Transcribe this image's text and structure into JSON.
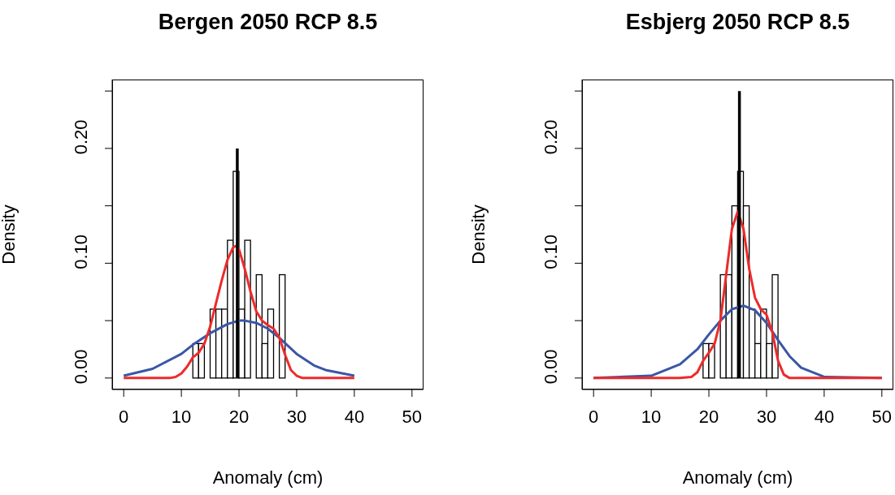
{
  "chart_data": [
    {
      "type": "histogram",
      "title": "Bergen 2050 RCP 8.5",
      "xlabel": "Anomaly (cm)",
      "ylabel": "Density",
      "bins": [
        12,
        13,
        14,
        15,
        16,
        17,
        18,
        19,
        20,
        21,
        22,
        23,
        24,
        25,
        26,
        27,
        28
      ],
      "values": [
        0.03,
        0.03,
        0,
        0.06,
        0.06,
        0.06,
        0.12,
        0.18,
        0.06,
        0.12,
        0,
        0.09,
        0.03,
        0.06,
        0,
        0.09
      ],
      "color": "#ffffff",
      "xlim": [
        -2,
        52
      ],
      "xticks": [
        0,
        10,
        20,
        30,
        40,
        50
      ],
      "ylim": [
        -0.01,
        0.26
      ],
      "yticks": [
        {
          "value": 0,
          "label": "0.00"
        },
        {
          "value": 0.05,
          "label": null
        },
        {
          "value": 0.1,
          "label": "0.10"
        },
        {
          "value": 0.15,
          "label": null
        },
        {
          "value": 0.2,
          "label": "0.20"
        },
        {
          "value": 0.25,
          "label": null
        }
      ],
      "series": [
        {
          "type": "line",
          "color": "#3a56a6",
          "x": [
            0,
            5,
            10,
            12,
            15,
            18,
            20,
            21,
            23,
            25,
            27,
            30,
            33,
            35,
            40
          ],
          "values": [
            0.002,
            0.008,
            0.021,
            0.029,
            0.039,
            0.047,
            0.05,
            0.05,
            0.048,
            0.043,
            0.035,
            0.021,
            0.011,
            0.007,
            0.002
          ]
        },
        {
          "type": "line",
          "color": "#ee2a2a",
          "x": [
            0,
            8,
            9,
            10,
            11,
            12,
            13,
            14,
            15,
            16,
            17,
            18,
            19,
            19.5,
            20,
            21,
            22,
            23,
            24,
            25,
            26,
            27,
            28,
            29,
            30,
            31,
            40
          ],
          "values": [
            0,
            0,
            0.001,
            0.004,
            0.01,
            0.018,
            0.022,
            0.03,
            0.045,
            0.065,
            0.085,
            0.103,
            0.114,
            0.115,
            0.112,
            0.095,
            0.075,
            0.058,
            0.05,
            0.046,
            0.043,
            0.035,
            0.02,
            0.007,
            0.002,
            0,
            0
          ]
        },
        {
          "type": "line",
          "color": "#000000",
          "x": [
            19.7,
            19.7
          ],
          "values": [
            0,
            0.2
          ]
        }
      ]
    },
    {
      "type": "histogram",
      "title": "Esbjerg 2050 RCP 8.5",
      "xlabel": "Anomaly (cm)",
      "ylabel": "Density",
      "bins": [
        19,
        20,
        21,
        22,
        23,
        24,
        25,
        26,
        27,
        28,
        29,
        30,
        31,
        32
      ],
      "values": [
        0.03,
        0.03,
        0,
        0.09,
        0.09,
        0.15,
        0.18,
        0.15,
        0.06,
        0.03,
        0.06,
        0.03,
        0.09
      ],
      "color": "#ffffff",
      "xlim": [
        -2,
        52
      ],
      "xticks": [
        0,
        10,
        20,
        30,
        40,
        50
      ],
      "ylim": [
        -0.01,
        0.26
      ],
      "yticks": [
        {
          "value": 0,
          "label": "0.00"
        },
        {
          "value": 0.05,
          "label": null
        },
        {
          "value": 0.1,
          "label": "0.10"
        },
        {
          "value": 0.15,
          "label": null
        },
        {
          "value": 0.2,
          "label": "0.20"
        },
        {
          "value": 0.25,
          "label": null
        }
      ],
      "series": [
        {
          "type": "line",
          "color": "#3a56a6",
          "x": [
            0,
            10,
            15,
            18,
            20,
            22,
            24,
            26,
            28,
            30,
            32,
            34,
            36,
            40,
            50
          ],
          "values": [
            0,
            0.002,
            0.012,
            0.025,
            0.038,
            0.05,
            0.06,
            0.063,
            0.059,
            0.048,
            0.033,
            0.019,
            0.009,
            0.001,
            0
          ]
        },
        {
          "type": "line",
          "color": "#ee2a2a",
          "x": [
            0,
            15,
            17,
            18,
            19,
            20,
            21,
            22,
            23,
            24,
            25,
            26,
            27,
            28,
            29,
            30,
            31,
            32,
            33,
            34,
            50
          ],
          "values": [
            0,
            0,
            0.001,
            0.005,
            0.015,
            0.022,
            0.03,
            0.05,
            0.09,
            0.13,
            0.145,
            0.13,
            0.095,
            0.07,
            0.06,
            0.055,
            0.04,
            0.015,
            0.003,
            0,
            0
          ]
        },
        {
          "type": "line",
          "color": "#000000",
          "x": [
            25.3,
            25.3
          ],
          "values": [
            0,
            0.25
          ]
        }
      ]
    }
  ]
}
